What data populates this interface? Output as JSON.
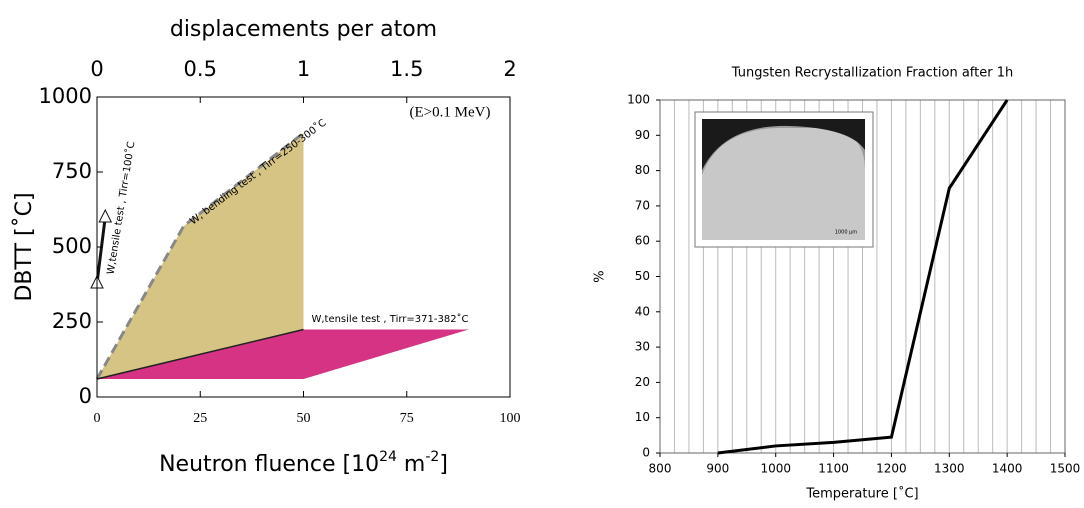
{
  "chart_data": [
    {
      "type": "area",
      "title": "displacements per atom",
      "xlabel_parts": [
        {
          "text": "Neutron fluence [10"
        },
        {
          "text": "24",
          "sup": true
        },
        {
          "text": " m"
        },
        {
          "text": "-2",
          "sup": true
        },
        {
          "text": "]"
        }
      ],
      "ylabel": "DBTT [˚C]",
      "xlim": [
        0,
        100
      ],
      "xticks": [
        0,
        25,
        50,
        75,
        100
      ],
      "x2lim": [
        0,
        2
      ],
      "x2ticks": [
        0,
        0.5,
        1,
        1.5,
        2
      ],
      "ylim": [
        0,
        1000
      ],
      "yticks": [
        0,
        250,
        500,
        750,
        1000
      ],
      "series": [
        {
          "style": "fill",
          "color": "#d6c484",
          "x": [
            0,
            21,
            50,
            50
          ],
          "values": [
            60,
            570,
            880,
            225
          ]
        },
        {
          "style": "fill",
          "color": "#d63384",
          "x": [
            0,
            50,
            90,
            50
          ],
          "values": [
            60,
            225,
            225,
            60
          ]
        },
        {
          "style": "dashed",
          "color": "#888888",
          "x": [
            0,
            21,
            50
          ],
          "values": [
            60,
            570,
            880
          ]
        },
        {
          "style": "line",
          "color": "#222222",
          "x": [
            0,
            50
          ],
          "values": [
            60,
            225
          ]
        },
        {
          "style": "arrow",
          "color": "#111111",
          "x": [
            0,
            2
          ],
          "values": [
            380,
            600
          ]
        }
      ],
      "annotations": [
        "(E>0.1 MeV)",
        "W, bending test , Tirr=250-300˚C",
        "W,tensile test , Tirr=100˚C",
        "W,tensile test , Tirr=371-382˚C"
      ]
    },
    {
      "type": "line",
      "title": "Tungsten Recrystallization Fraction after 1h",
      "xlabel": "Temperature [˚C]",
      "ylabel": "%",
      "x": [
        900,
        1000,
        1100,
        1200,
        1300,
        1400
      ],
      "values": [
        0,
        2,
        3,
        4.5,
        75,
        100
      ],
      "color": "#000000",
      "xlim": [
        800,
        1500
      ],
      "xticks": [
        800,
        900,
        1000,
        1100,
        1200,
        1300,
        1400,
        1500
      ],
      "ylim": [
        0,
        100
      ],
      "yticks": [
        0,
        10,
        20,
        30,
        40,
        50,
        60,
        70,
        80,
        90,
        100
      ],
      "grid_x_step": 25,
      "inset_label": "1000 µm"
    }
  ]
}
